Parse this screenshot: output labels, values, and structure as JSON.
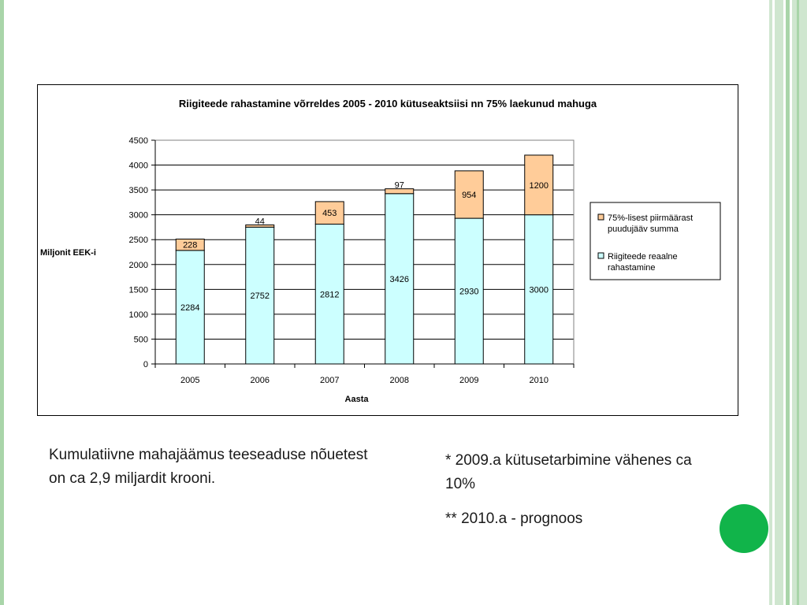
{
  "chart_data": {
    "type": "bar",
    "stacked": true,
    "title": "Riigiteede rahastamine võrreldes 2005 - 2010 kütuseaktsiisi nn 75% laekunud mahuga",
    "xlabel": "Aasta",
    "ylabel": "Miljonit EEK-i",
    "categories": [
      "2005",
      "2006",
      "2007",
      "2008",
      "2009",
      "2010"
    ],
    "ylim": [
      0,
      4500
    ],
    "yticks": [
      "0",
      "500",
      "1000",
      "1500",
      "2000",
      "2500",
      "3000",
      "3500",
      "4000",
      "4500"
    ],
    "grid": true,
    "legend_position": "right",
    "series": [
      {
        "name": "Riigiteede reaalne rahastamine",
        "legend_lines": [
          "Riigiteede reaalne",
          "rahastamine"
        ],
        "color": "#ccffff",
        "values": [
          2284,
          2752,
          2812,
          3426,
          2930,
          3000
        ]
      },
      {
        "name": "75%-lisest piirmäärast puudujääv summa",
        "legend_lines": [
          "75%-lisest piirmäärast",
          "puudujääv summa"
        ],
        "color": "#ffcc99",
        "values": [
          228,
          44,
          453,
          97,
          954,
          1200
        ]
      }
    ]
  },
  "notes": {
    "left": "Kumulatiivne mahajäämus teeseaduse nõuetest on ca 2,9 miljardit krooni.",
    "right_1": "* 2009.a kütusetarbimine vähenes ca 10%",
    "right_2": "** 2010.a - prognoos"
  },
  "colors": {
    "accent_dot": "#11b44a",
    "stripe_dark": "#a9d5a9",
    "stripe_light": "#cfe6cf"
  }
}
